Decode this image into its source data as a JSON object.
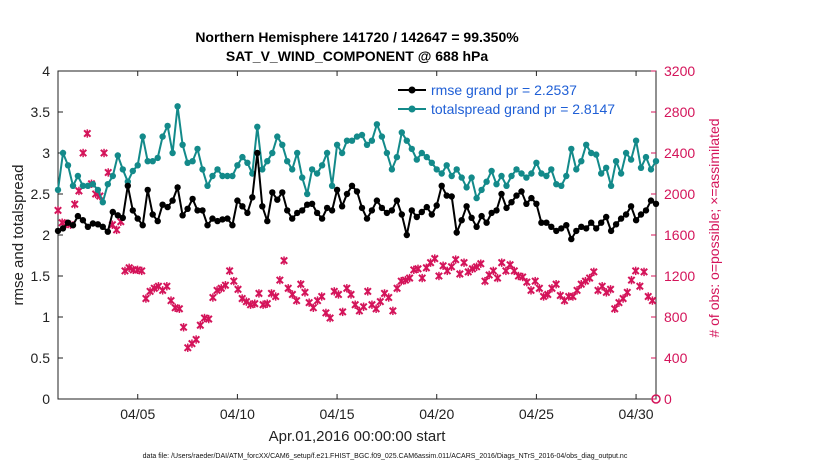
{
  "chart_data": {
    "type": "line",
    "title": "Northern Hemisphere 141720 / 142647 = 99.350%",
    "subtitle": "SAT_V_WIND_COMPONENT @ 688 hPa",
    "xlabel": "Apr.01,2016 00:00:00 start",
    "ylabel": "rmse and totalspread",
    "ylabel_right": "# of obs: o=possible; ×=assimilated",
    "xlim": [
      1,
      31
    ],
    "ylim": [
      0,
      4
    ],
    "ylim_right": [
      0,
      3200
    ],
    "x_ticks": [
      {
        "value": 5,
        "label": "04/05"
      },
      {
        "value": 10,
        "label": "04/10"
      },
      {
        "value": 15,
        "label": "04/15"
      },
      {
        "value": 20,
        "label": "04/20"
      },
      {
        "value": 25,
        "label": "04/25"
      },
      {
        "value": 30,
        "label": "04/30"
      }
    ],
    "y_ticks": [
      "0",
      "0.5",
      "1",
      "1.5",
      "2",
      "2.5",
      "3",
      "3.5",
      "4"
    ],
    "y_ticks_right": [
      "0",
      "400",
      "800",
      "1200",
      "1600",
      "2000",
      "2400",
      "2800",
      "3200"
    ],
    "legend_position": "top-right",
    "series": [
      {
        "name": "rmse grand pr = 2.2537",
        "color": "#000000",
        "axis": "left",
        "values": [
          2.05,
          2.08,
          2.15,
          2.12,
          2.23,
          2.18,
          2.1,
          2.14,
          2.13,
          2.1,
          2.04,
          2.28,
          2.24,
          2.21,
          2.6,
          2.3,
          2.2,
          2.12,
          2.55,
          2.25,
          2.17,
          2.37,
          2.34,
          2.42,
          2.58,
          2.24,
          2.32,
          2.44,
          2.3,
          2.3,
          2.12,
          2.2,
          2.17,
          2.19,
          2.2,
          2.12,
          2.42,
          2.35,
          2.27,
          2.46,
          3.0,
          2.35,
          2.17,
          2.52,
          2.43,
          2.52,
          2.3,
          2.2,
          2.27,
          2.3,
          2.37,
          2.38,
          2.27,
          2.2,
          2.33,
          2.3,
          2.55,
          2.35,
          2.5,
          2.6,
          2.53,
          2.33,
          2.2,
          2.3,
          2.42,
          2.33,
          2.27,
          2.3,
          2.42,
          2.25,
          2.0,
          2.3,
          2.22,
          2.28,
          2.34,
          2.25,
          2.36,
          2.6,
          2.48,
          2.47,
          2.03,
          2.18,
          2.35,
          2.21,
          2.1,
          2.23,
          2.15,
          2.27,
          2.3,
          2.5,
          2.33,
          2.4,
          2.48,
          2.53,
          2.38,
          2.45,
          2.38,
          2.15,
          2.15,
          2.1,
          2.05,
          2.08,
          2.12,
          1.95,
          2.05,
          2.1,
          2.08,
          2.15,
          2.08,
          2.15,
          2.22,
          2.05,
          2.13,
          2.2,
          2.25,
          2.35,
          2.18,
          2.25,
          2.3,
          2.42,
          2.38,
          2.1,
          2.2,
          2.25,
          2.2,
          2.25,
          2.2,
          2.28,
          2.22,
          2.12,
          2.2,
          2.05,
          2.18,
          2.15,
          2.23,
          2.28,
          2.25,
          2.15,
          2.12,
          2.25,
          2.3,
          2.38
        ],
        "x_start": 1.0,
        "x_step": 0.25
      },
      {
        "name": "totalspread grand pr = 2.8147",
        "color": "#138a8a",
        "axis": "left",
        "values": [
          2.55,
          3.0,
          2.85,
          2.6,
          2.72,
          2.6,
          2.6,
          2.62,
          2.55,
          2.4,
          2.62,
          2.72,
          2.97,
          2.8,
          2.65,
          2.78,
          2.85,
          3.2,
          2.9,
          2.9,
          2.94,
          3.2,
          3.33,
          3.0,
          3.57,
          3.1,
          2.88,
          2.9,
          3.05,
          2.8,
          2.6,
          2.72,
          2.8,
          2.72,
          2.72,
          2.72,
          2.85,
          2.95,
          2.88,
          2.75,
          3.32,
          2.8,
          2.9,
          3.0,
          3.2,
          3.1,
          2.9,
          2.8,
          3.0,
          2.7,
          2.5,
          2.8,
          2.75,
          2.85,
          3.0,
          2.6,
          3.1,
          3.0,
          3.15,
          3.15,
          3.2,
          3.22,
          3.1,
          3.15,
          3.35,
          3.2,
          3.0,
          2.8,
          2.95,
          3.25,
          3.15,
          3.05,
          2.92,
          3.0,
          2.95,
          2.88,
          2.8,
          2.75,
          2.85,
          2.72,
          2.8,
          2.7,
          2.58,
          2.7,
          2.45,
          2.55,
          2.65,
          2.78,
          2.62,
          2.72,
          2.6,
          2.72,
          2.8,
          2.75,
          2.7,
          2.75,
          2.88,
          2.75,
          2.72,
          2.8,
          2.62,
          2.6,
          2.72,
          3.05,
          2.8,
          2.9,
          3.1,
          3.0,
          2.98,
          2.75,
          2.82,
          2.6,
          2.9,
          2.75,
          3.0,
          2.92,
          3.15,
          2.82,
          2.95,
          2.8,
          2.9,
          2.75,
          2.92,
          2.6,
          2.8,
          2.7,
          2.72,
          2.8,
          2.6,
          2.62,
          2.75,
          2.55,
          2.7,
          2.6,
          2.72,
          2.62,
          2.7,
          2.45,
          2.65,
          2.78,
          2.95,
          2.9,
          2.82,
          3.0,
          3.05
        ],
        "x_start": 1.0,
        "x_step": 0.25
      },
      {
        "name": "# of obs assimilated",
        "color": "#d4145a",
        "axis": "right",
        "marker": "x",
        "values": [
          1840,
          1720,
          1710,
          1700,
          1900,
          2030,
          2400,
          2590,
          2100,
          2000,
          1980,
          2400,
          2210,
          1700,
          1650,
          1730,
          1250,
          1280,
          1260,
          1260,
          1250,
          980,
          1050,
          1080,
          1100,
          1060,
          1100,
          960,
          890,
          880,
          700,
          500,
          540,
          580,
          720,
          790,
          780,
          990,
          1060,
          1080,
          1110,
          1250,
          1150,
          1070,
          980,
          950,
          920,
          930,
          1030,
          920,
          930,
          1030,
          1000,
          1160,
          1350,
          1080,
          1020,
          960,
          1120,
          1040,
          940,
          890,
          960,
          1000,
          840,
          790,
          1050,
          1020,
          850,
          1080,
          1020,
          920,
          860,
          900,
          1050,
          920,
          880,
          950,
          1030,
          990,
          860,
          1080,
          1150,
          1160,
          1180,
          1260,
          1270,
          1180,
          1280,
          1330,
          1370,
          1200,
          1300,
          1250,
          1290,
          1360,
          1220,
          1330,
          1240,
          1270,
          1290,
          1320,
          1150,
          1210,
          1250,
          1180,
          1330,
          1250,
          1310,
          1250,
          1200,
          1190,
          1140,
          1060,
          1150,
          1080,
          1000,
          1020,
          1080,
          1120,
          1010,
          960,
          1000,
          1000,
          1060,
          1120,
          1150,
          1180,
          1240,
          1060,
          1100,
          1040,
          1070,
          880,
          940,
          980,
          1040,
          1160,
          1250,
          1100,
          1240,
          1000,
          960,
          1030,
          960
        ],
        "x_start": 1.0,
        "x_step": 0.21
      }
    ],
    "footnote": "data file: /Users/raeder/DAI/ATM_forcXX/CAM6_setup/f.e21.FHIST_BGC.f09_025.CAM6assim.011/ACARS_2016/Diags_NTrS_2016-04/obs_diag_output.nc"
  }
}
